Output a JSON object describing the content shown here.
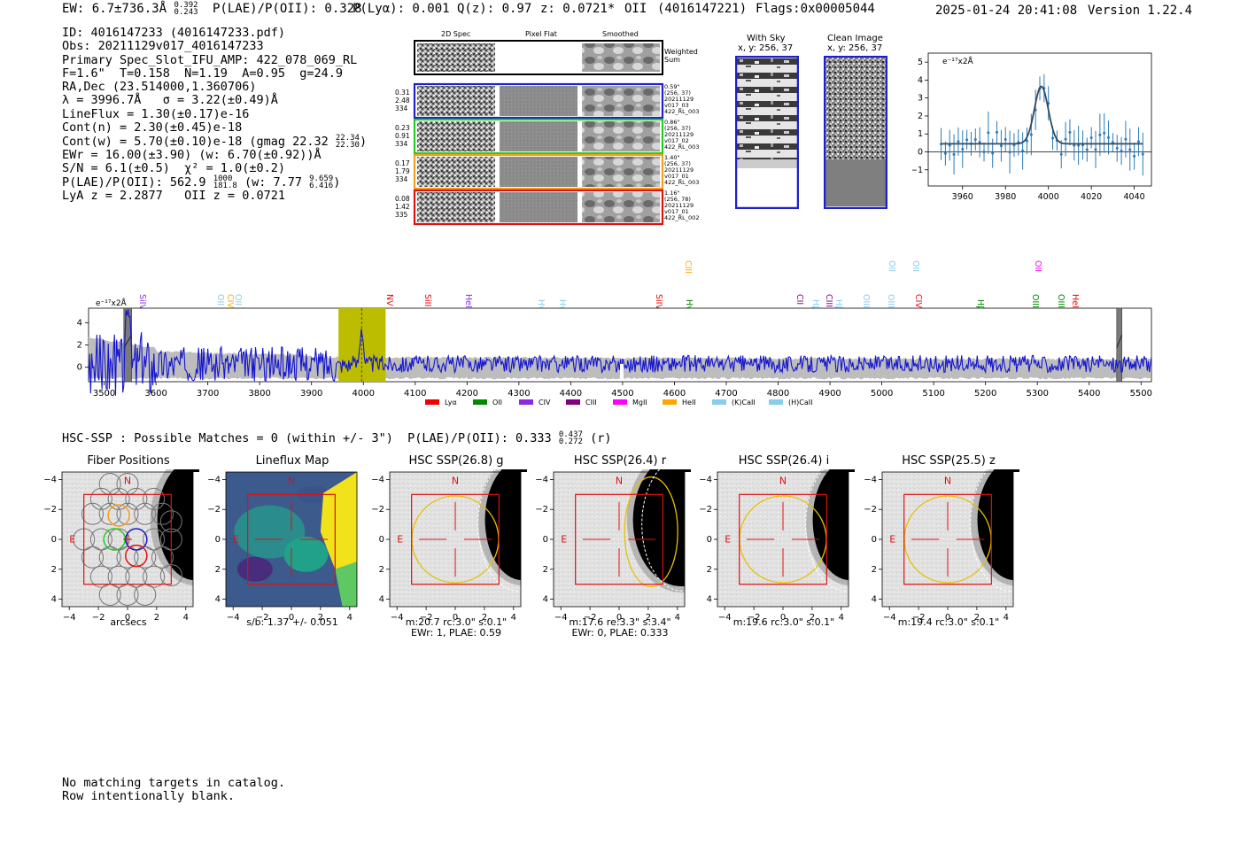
{
  "header": {
    "ew": "EW: 6.7±736.3Å",
    "ew_sup": "0.392",
    "ew_sub": "0.243",
    "plae": "P(LAE)/P(OII): 0.328",
    "plya": "P(Lyα): 0.001",
    "qz": "Q(z): 0.97",
    "z": "z: 0.0721*",
    "line": "OII",
    "detid_paren": "(4016147221)",
    "flags": "Flags:0x00005044",
    "timestamp": "2025-01-24 20:41:08",
    "version": "Version 1.22.4"
  },
  "info": {
    "id": "ID: 4016147233 (4016147233.pdf)",
    "obs": "Obs: 20211129v017_4016147233",
    "primary": "Primary Spec_Slot_IFU_AMP: 422_078_069_RL",
    "fparams": "F=1.6\"  T=0.158  N=1.19  A=0.95  g=24.9",
    "radec": "RA,Dec (23.514000,1.360706)",
    "lambda": "λ = 3996.7Å   σ = 3.22(±0.49)Å",
    "lineflux": "LineFlux = 1.30(±0.17)e-16",
    "contn": "Cont(n) = 2.30(±0.45)e-18",
    "contw": "Cont(w) = 5.70(±0.10)e-18 (gmag 22.32",
    "contw_sup": "22.34",
    "contw_sub": "22.30",
    "ewr": "EWr = 16.00(±3.90) (w: 6.70(±0.92))Å",
    "sn": "S/N = 6.1(±0.5)  χ² = 1.0(±0.2)",
    "plae_a": "P(LAE)/P(OII): 562.9",
    "plae_sup": "1000",
    "plae_sub": "181.8",
    "plae_w": "(w: 7.77",
    "plae_w_sup": "9.659",
    "plae_w_sub": "6.416",
    "lya": "LyA z = 2.2877   OII z = 0.0721"
  },
  "cutouts": {
    "col_2d": "2D Spec",
    "col_flat": "Pixel Flat",
    "col_smooth": "Smoothed",
    "weighted": "Weighted Sum",
    "rows": [
      {
        "left": [
          "0.31",
          "2.48",
          "334"
        ],
        "right": [
          "0.59\"",
          "(256, 37)",
          "20211129",
          "v017_03",
          "422_RL_003"
        ],
        "color": "#1f1fcc"
      },
      {
        "left": [
          "0.23",
          "0.91",
          "334"
        ],
        "right": [
          "0.86\"",
          "(256, 37)",
          "20211129",
          "v017_02",
          "422_RL_003"
        ],
        "color": "#22cc22"
      },
      {
        "left": [
          "0.17",
          "1.79",
          "334"
        ],
        "right": [
          "1.40\"",
          "(256, 37)",
          "20211129",
          "v017_01",
          "422_RL_003"
        ],
        "color": "#f0a020"
      },
      {
        "left": [
          "0.08",
          "1.42",
          "335"
        ],
        "right": [
          "1.16\"",
          "(256, 78)",
          "20211129",
          "v017_01",
          "422_RL_002"
        ],
        "color": "#dd1111"
      }
    ]
  },
  "sky": {
    "with_sky": "With Sky",
    "with_sky_xy": "x, y: 256, 37",
    "clean": "Clean Image",
    "clean_xy": "x, y: 256, 37"
  },
  "zoom_chart": {
    "unit": "e⁻¹⁷x2Å",
    "xticks": [
      "3960",
      "3980",
      "4000",
      "4020",
      "4040"
    ],
    "yticks": [
      "5",
      "4",
      "3",
      "2",
      "1",
      "0",
      "−1"
    ]
  },
  "spectrum": {
    "unit": "e⁻¹⁷x2Å",
    "xticks": [
      "3500",
      "3600",
      "3700",
      "3800",
      "3900",
      "4000",
      "4100",
      "4200",
      "4300",
      "4400",
      "4500",
      "4600",
      "4700",
      "4800",
      "4900",
      "5000",
      "5100",
      "5200",
      "5300",
      "5400",
      "5500"
    ],
    "yticks": [
      "4",
      "2",
      "0"
    ],
    "legend": [
      {
        "label": "Lyα",
        "color": "#ee0000"
      },
      {
        "label": "OII",
        "color": "#008800"
      },
      {
        "label": "CIV",
        "color": "#8a2be2"
      },
      {
        "label": "CIII",
        "color": "#800080"
      },
      {
        "label": "MgII",
        "color": "#ff00ff"
      },
      {
        "label": "HeII",
        "color": "#ffa500"
      },
      {
        "label": "(K)CaII",
        "color": "#87ceeb"
      },
      {
        "label": "(H)CaII",
        "color": "#87ceeb"
      }
    ],
    "lines": [
      {
        "label": "SiIV",
        "color": "#8a2be2"
      },
      {
        "label": "OII",
        "color": "#87ceeb"
      },
      {
        "label": "CIV",
        "color": "#ffa500"
      },
      {
        "label": "OII",
        "color": "#87ceeb"
      },
      {
        "label": "NV",
        "color": "#ee0000"
      },
      {
        "label": "SiII",
        "color": "#ee0000"
      },
      {
        "label": "HeII",
        "color": "#8a2be2"
      },
      {
        "label": "Hγ",
        "color": "#87ceeb"
      },
      {
        "label": "Hγ",
        "color": "#87ceeb"
      },
      {
        "label": "SiIV",
        "color": "#ee0000"
      },
      {
        "label": "CIII",
        "color": "#ffa500"
      },
      {
        "label": "Hγ",
        "color": "#008800"
      },
      {
        "label": "CII",
        "color": "#800080"
      },
      {
        "label": "Hβ",
        "color": "#87ceeb"
      },
      {
        "label": "CIII",
        "color": "#800080"
      },
      {
        "label": "Hβ",
        "color": "#87ceeb"
      },
      {
        "label": "OIII",
        "color": "#87ceeb"
      },
      {
        "label": "OIII",
        "color": "#87ceeb"
      },
      {
        "label": "OII",
        "color": "#87ceeb"
      },
      {
        "label": "OII",
        "color": "#87ceeb"
      },
      {
        "label": "CIV",
        "color": "#ee0000"
      },
      {
        "label": "Hβ",
        "color": "#008800"
      },
      {
        "label": "OII",
        "color": "#ff00ff"
      },
      {
        "label": "OIII",
        "color": "#008800"
      },
      {
        "label": "OIII",
        "color": "#008800"
      },
      {
        "label": "HeII",
        "color": "#ee0000"
      }
    ]
  },
  "hsc": {
    "summary": "HSC-SSP : Possible Matches = 0 (within +/- 3\")  P(LAE)/P(OII): 0.333",
    "summary_sup": "0.437",
    "summary_sub": "0.272",
    "summary_tail": "(r)",
    "ticks": [
      "−4",
      "−2",
      "0",
      "2",
      "4"
    ],
    "panels": [
      {
        "title": "Fiber Positions",
        "caption1": "arcsecs",
        "caption2": ""
      },
      {
        "title": "Lineflux Map",
        "caption1": "s/b: 1.37 +/- 0.051",
        "caption2": ""
      },
      {
        "title": "HSC SSP(26.8) g",
        "caption1": "m:20.7 rc:3.0\"  s:0.1\"",
        "caption2": "EWr: 1, PLAE: 0.59"
      },
      {
        "title": "HSC SSP(26.4) r",
        "caption1": "m:17.6  re:3.3\"  s:3.4\"",
        "caption2": "EWr: 0, PLAE: 0.333"
      },
      {
        "title": "HSC SSP(26.4) i",
        "caption1": "m:19.6 rc:3.0\"  s:0.1\"",
        "caption2": ""
      },
      {
        "title": "HSC SSP(25.5) z",
        "caption1": "m:19.4 rc:3.0\"  s:0.1\"",
        "caption2": ""
      }
    ],
    "compass_n": "N",
    "compass_e": "E"
  },
  "footer": {
    "line1": "No matching targets in catalog.",
    "line2": "Row intentionally blank."
  }
}
